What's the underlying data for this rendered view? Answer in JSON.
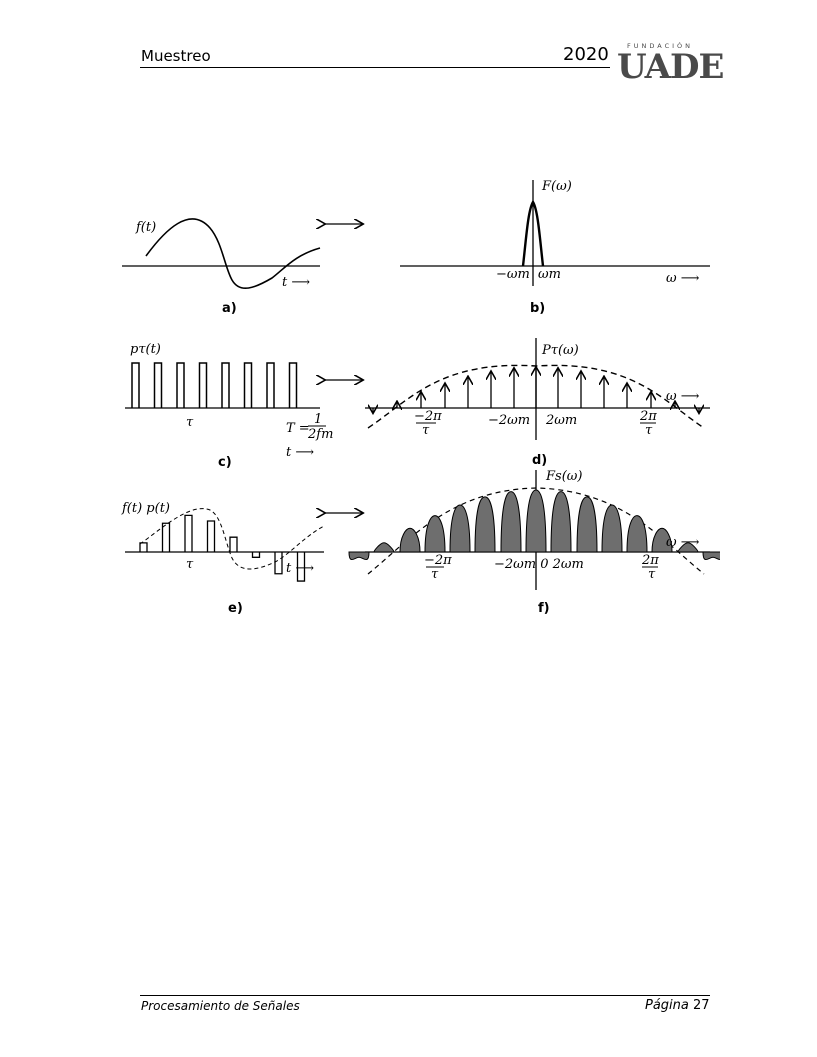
{
  "header": {
    "title": "Muestreo",
    "year": "2020",
    "logo": {
      "small_text": "FUNDACIÓN",
      "big_text": "UADE"
    }
  },
  "figure": {
    "panel_a": {
      "caption": "a)",
      "ylabel": "f(t)",
      "xlabel": "t ⟶"
    },
    "panel_b": {
      "caption": "b)",
      "ylabel": "F(ω)",
      "tick_neg": "−ωm",
      "tick_pos": "ωm",
      "xlabel": "ω ⟶"
    },
    "panel_c": {
      "caption": "c)",
      "ylabel": "pτ(t)",
      "tau": "τ",
      "period": "T =",
      "period_num": "1",
      "period_den": "2fm",
      "xlabel": "t ⟶"
    },
    "panel_d": {
      "caption": "d)",
      "ylabel": "Pτ(ω)",
      "tick_neg_num": "−2π",
      "tick_neg_den": "τ",
      "tick_m2": "−2ωm",
      "tick_p2": "2ωm",
      "tick_pos_num": "2π",
      "tick_pos_den": "τ",
      "xlabel": "ω ⟶"
    },
    "panel_e": {
      "caption": "e)",
      "ylabel": "f(t) p(t)",
      "tau": "τ",
      "xlabel": "t ⟶"
    },
    "panel_f": {
      "caption": "f)",
      "ylabel": "Fs(ω)",
      "tick_neg_num": "−2π",
      "tick_neg_den": "τ",
      "tick_mid": "−2ωm 0 2ωm",
      "tick_pos_num": "2π",
      "tick_pos_den": "τ",
      "xlabel": "ω ⟶"
    },
    "arrow_symbol": "⟷"
  },
  "footer": {
    "left": "Procesamiento de Señales",
    "page_label": "Página",
    "page_number": "27"
  }
}
